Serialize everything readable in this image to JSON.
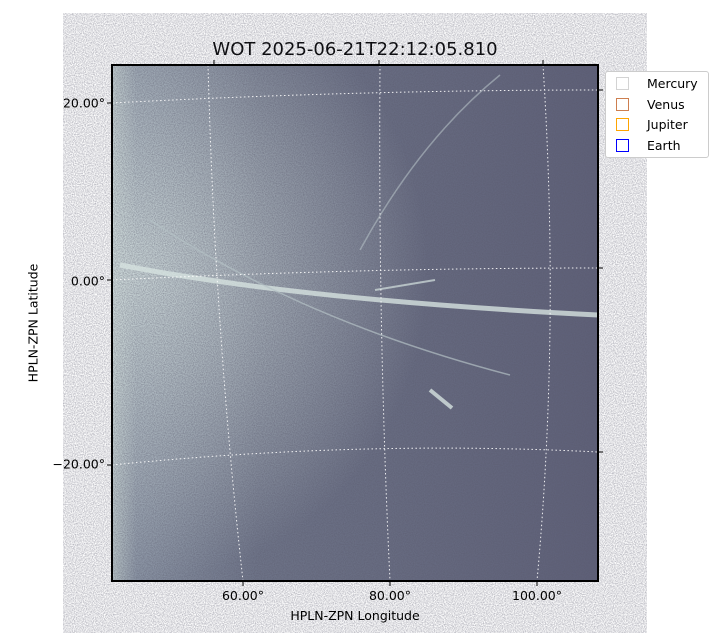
{
  "chart_data": {
    "type": "image",
    "title": "WOT 2025-06-21T22:12:05.810",
    "xlabel": "HPLN-ZPN Longitude",
    "ylabel": "HPLN-ZPN Latitude",
    "x_ticks": [
      "60.00°",
      "80.00°",
      "100.00°"
    ],
    "y_ticks": [
      "20.00°",
      "0.00°",
      "−20.00°"
    ],
    "colormap": "bone",
    "grid": "dotted white coordinate grid",
    "legend": {
      "placement": "outside-top-right",
      "entries": [
        {
          "name": "Mercury",
          "color": "#d3d3d3"
        },
        {
          "name": "Venus",
          "color": "#cd7f4f"
        },
        {
          "name": "Jupiter",
          "color": "#ffa500"
        },
        {
          "name": "Earth",
          "color": "#0000ff"
        }
      ]
    }
  }
}
